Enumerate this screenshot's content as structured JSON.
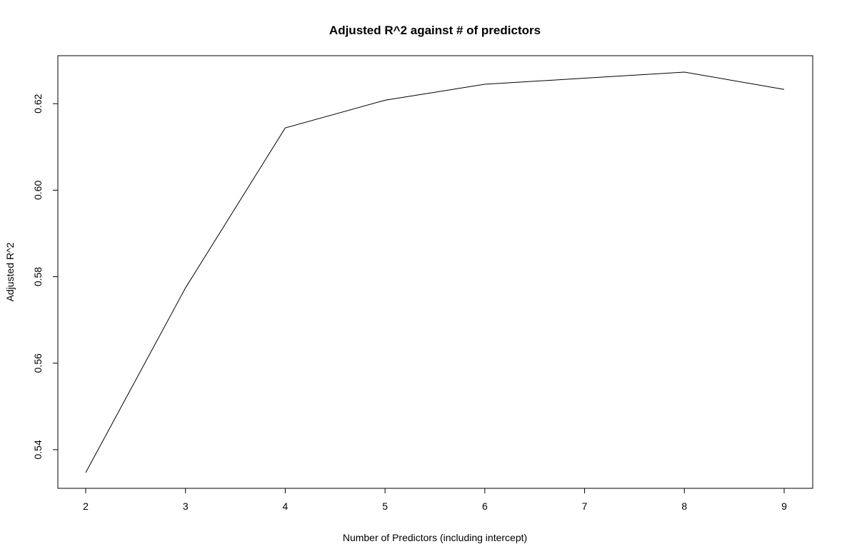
{
  "chart_data": {
    "type": "line",
    "title": "Adjusted R^2 against # of predictors",
    "xlabel": "Number of Predictors (including intercept)",
    "ylabel": "Adjusted R^2",
    "x": [
      2,
      3,
      4,
      5,
      6,
      7,
      8,
      9
    ],
    "series": [
      {
        "values": [
          0.5347,
          0.5774,
          0.6144,
          0.6208,
          0.6245,
          0.6259,
          0.6273,
          0.6233
        ]
      }
    ],
    "x_ticks": [
      "2",
      "3",
      "4",
      "5",
      "6",
      "7",
      "8",
      "9"
    ],
    "y_ticks": [
      "0.54",
      "0.56",
      "0.58",
      "0.60",
      "0.62"
    ],
    "xlim": [
      2,
      9
    ],
    "ylim": [
      0.5347,
      0.6273
    ],
    "grid": false,
    "line_color": "#000000"
  }
}
